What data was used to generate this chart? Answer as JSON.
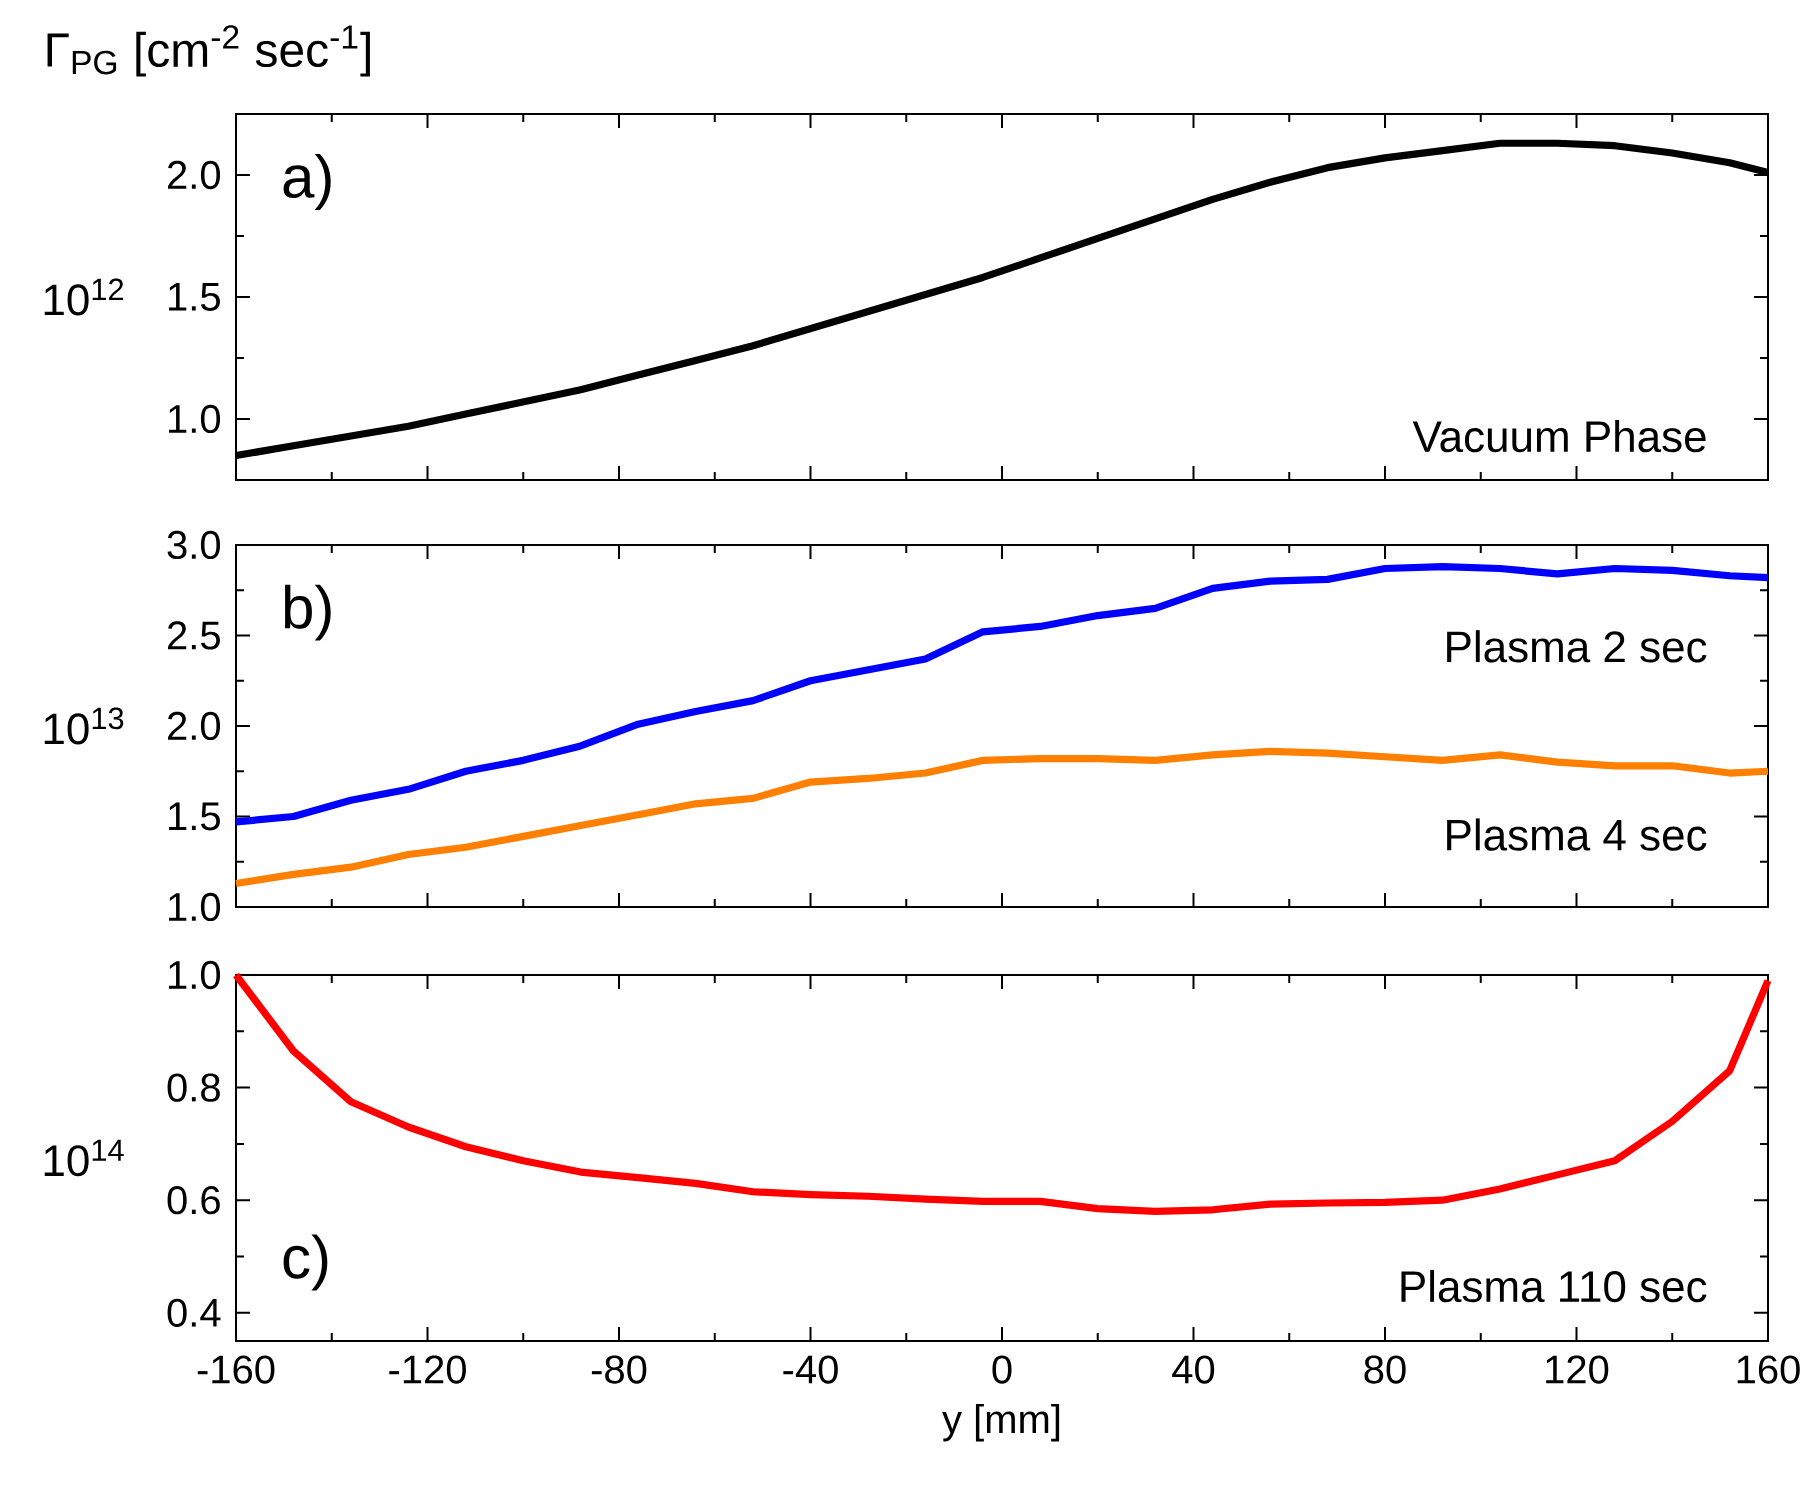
{
  "chart_data": [
    {
      "type": "line",
      "title": "Γ$_{PG}$ [cm$^{-2}$ sec$^{-1}$]",
      "ylabel": "10$^{12}$",
      "annotations": [
        "a)"
      ],
      "tick_labels": "y",
      "x": [
        -160,
        -148,
        -136,
        -124,
        -112,
        -100,
        -88,
        -76,
        -64,
        -52,
        -40,
        -28,
        -16,
        -4,
        8,
        20,
        32,
        44,
        56,
        68,
        80,
        92,
        104,
        116,
        128,
        140,
        152,
        160
      ],
      "series": [
        {
          "name": "Vacuum Phase",
          "color": "#000000",
          "values": [
            0.85,
            0.89,
            0.93,
            0.97,
            1.02,
            1.07,
            1.12,
            1.18,
            1.24,
            1.3,
            1.37,
            1.44,
            1.51,
            1.58,
            1.66,
            1.74,
            1.82,
            1.9,
            1.97,
            2.03,
            2.07,
            2.1,
            2.13,
            2.13,
            2.12,
            2.09,
            2.05,
            2.01
          ]
        }
      ],
      "xlim": [
        -160,
        160
      ],
      "xticks": [
        -160,
        -120,
        -80,
        -40,
        0,
        40,
        80,
        120,
        160
      ],
      "ylim": [
        0.75,
        2.25
      ],
      "yticks": [
        {
          "value": 1.0,
          "label": "1.0"
        },
        1.5,
        {
          "value": 2.0,
          "label": "2.0"
        }
      ]
    },
    {
      "type": "line",
      "ylabel": "10$^{13}$",
      "annotations": [
        "b)"
      ],
      "tick_labels": "y",
      "x": [
        -160,
        -148,
        -136,
        -124,
        -112,
        -100,
        -88,
        -76,
        -64,
        -52,
        -40,
        -28,
        -16,
        -4,
        8,
        20,
        32,
        44,
        56,
        68,
        80,
        92,
        104,
        116,
        128,
        140,
        152,
        160
      ],
      "series": [
        {
          "name": "Plasma 2 sec",
          "color": "#0000ff",
          "values": [
            1.47,
            1.5,
            1.59,
            1.65,
            1.75,
            1.81,
            1.89,
            2.01,
            2.08,
            2.14,
            2.25,
            2.31,
            2.37,
            2.52,
            2.55,
            2.61,
            2.65,
            2.76,
            2.8,
            2.81,
            2.87,
            2.88,
            2.87,
            2.84,
            2.87,
            2.86,
            2.83,
            2.82
          ]
        },
        {
          "name": "Plasma 4 sec",
          "color": "#ff8000",
          "values": [
            1.13,
            1.18,
            1.22,
            1.29,
            1.33,
            1.39,
            1.45,
            1.51,
            1.57,
            1.6,
            1.69,
            1.71,
            1.74,
            1.81,
            1.82,
            1.82,
            1.81,
            1.84,
            1.86,
            1.85,
            1.83,
            1.81,
            1.84,
            1.8,
            1.78,
            1.78,
            1.74,
            1.75
          ]
        }
      ],
      "xlim": [
        -160,
        160
      ],
      "xticks": [
        -160,
        -120,
        -80,
        -40,
        0,
        40,
        80,
        120,
        160
      ],
      "ylim": [
        1.0,
        3.0
      ],
      "yticks": [
        {
          "value": 1.0,
          "label": "1.0"
        },
        1.5,
        {
          "value": 2.0,
          "label": "2.0"
        },
        2.5,
        {
          "value": 3.0,
          "label": "3.0"
        }
      ]
    },
    {
      "type": "line",
      "ylabel": "10$^{14}$",
      "xlabel": "y [mm]",
      "annotations": [
        "c)"
      ],
      "x": [
        -160,
        -148,
        -136,
        -124,
        -112,
        -100,
        -88,
        -76,
        -64,
        -52,
        -40,
        -28,
        -16,
        -4,
        8,
        20,
        32,
        44,
        56,
        68,
        80,
        92,
        104,
        116,
        128,
        140,
        152,
        160
      ],
      "series": [
        {
          "name": "Plasma 110 sec",
          "color": "#ff0000",
          "values": [
            1.0,
            0.865,
            0.775,
            0.73,
            0.695,
            0.67,
            0.65,
            0.64,
            0.63,
            0.615,
            0.61,
            0.607,
            0.602,
            0.598,
            0.598,
            0.585,
            0.58,
            0.583,
            0.593,
            0.595,
            0.596,
            0.6,
            0.62,
            0.645,
            0.67,
            0.74,
            0.83,
            0.99
          ]
        }
      ],
      "xlim": [
        -160,
        160
      ],
      "xticks": [
        -160,
        -120,
        -80,
        -40,
        0,
        40,
        80,
        120,
        160
      ],
      "ylim": [
        0.35,
        1.0
      ],
      "yticks": [
        0.4,
        0.6,
        0.8,
        {
          "value": 1.0,
          "label": "1.0"
        }
      ]
    }
  ]
}
